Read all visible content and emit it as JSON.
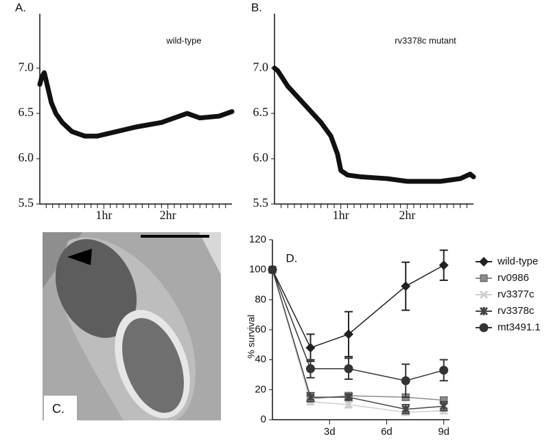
{
  "chart_data": [
    {
      "type": "line",
      "label": "A.",
      "annotation": "wild-type",
      "color": "#111111",
      "x": [
        0,
        0.03,
        0.07,
        0.12,
        0.18,
        0.25,
        0.35,
        0.5,
        0.7,
        0.9,
        1.2,
        1.5,
        1.9,
        2.1,
        2.3,
        2.5,
        2.8,
        3.0
      ],
      "values": [
        6.82,
        6.9,
        6.95,
        6.8,
        6.62,
        6.5,
        6.4,
        6.3,
        6.25,
        6.25,
        6.3,
        6.35,
        6.4,
        6.45,
        6.5,
        6.45,
        6.47,
        6.52
      ],
      "xlim": [
        0,
        3
      ],
      "ylim": [
        5.5,
        7.6
      ],
      "xticks": [
        {
          "value": 1,
          "label": "1hr"
        },
        {
          "value": 2,
          "label": "2hr"
        }
      ],
      "xminorticks": [
        0.1,
        0.2,
        0.3,
        0.4,
        0.5,
        0.6,
        0.7,
        0.8,
        0.9,
        1.1,
        1.2,
        1.3,
        1.4,
        1.5,
        1.6,
        1.7,
        1.8,
        1.9,
        2.1,
        2.2,
        2.3,
        2.4,
        2.5,
        2.6,
        2.7,
        2.8,
        2.9
      ],
      "yticks": [
        {
          "value": 5.5,
          "label": "5.5"
        },
        {
          "value": 6,
          "label": "6.0"
        },
        6.5,
        {
          "value": 7,
          "label": "7.0"
        }
      ]
    },
    {
      "type": "line",
      "label": "B.",
      "annotation": "rv3378c mutant",
      "color": "#111111",
      "x": [
        0,
        0.05,
        0.2,
        0.45,
        0.7,
        0.85,
        0.95,
        1.0,
        1.1,
        1.3,
        1.7,
        2.0,
        2.5,
        2.8,
        2.95,
        3.0
      ],
      "values": [
        7.0,
        6.97,
        6.8,
        6.6,
        6.4,
        6.25,
        6.05,
        5.87,
        5.82,
        5.8,
        5.78,
        5.75,
        5.75,
        5.78,
        5.83,
        5.8
      ],
      "xlim": [
        0,
        3
      ],
      "ylim": [
        5.5,
        7.6
      ],
      "xticks": [
        {
          "value": 1,
          "label": "1hr"
        },
        {
          "value": 2,
          "label": "2hr"
        }
      ],
      "xminorticks": [
        0.1,
        0.2,
        0.3,
        0.4,
        0.5,
        0.6,
        0.7,
        0.8,
        0.9,
        1.1,
        1.2,
        1.3,
        1.4,
        1.5,
        1.6,
        1.7,
        1.8,
        1.9,
        2.1,
        2.2,
        2.3,
        2.4,
        2.5,
        2.6,
        2.7,
        2.8,
        2.9
      ],
      "yticks": [
        {
          "value": 5.5,
          "label": "5.5"
        },
        {
          "value": 6,
          "label": "6.0"
        },
        6.5,
        {
          "value": 7,
          "label": "7.0"
        }
      ]
    },
    {
      "type": "line",
      "label": "D.",
      "y_label": "% survival",
      "legend": "right",
      "x": [
        0,
        2,
        4,
        7,
        9
      ],
      "xlim": [
        0,
        9.3
      ],
      "ylim": [
        0,
        120
      ],
      "xticks": [
        {
          "value": 3,
          "label": "3d"
        },
        {
          "value": 6,
          "label": "6d"
        },
        {
          "value": 9,
          "label": "9d"
        }
      ],
      "yticks": [
        0,
        20,
        40,
        60,
        80,
        100,
        120
      ],
      "series": [
        {
          "name": "wild-type",
          "color": "#222222",
          "marker": "diamond",
          "values": [
            100,
            48,
            57,
            89,
            103
          ],
          "errors": [
            0,
            9,
            15,
            16,
            10
          ]
        },
        {
          "name": "rv0986",
          "color": "#8c8c8c",
          "marker": "square",
          "values": [
            100,
            14,
            16,
            15,
            13
          ],
          "errors": [
            0,
            2,
            2,
            2,
            2
          ]
        },
        {
          "name": "rv3377c",
          "color": "#cfcfcf",
          "marker": "x",
          "values": [
            100,
            12,
            10,
            5,
            6
          ],
          "errors": [
            0,
            2,
            2,
            2,
            2
          ]
        },
        {
          "name": "rv3378c",
          "color": "#444444",
          "marker": "asterisk",
          "values": [
            100,
            15,
            15,
            7,
            9
          ],
          "errors": [
            0,
            3,
            2,
            3,
            3
          ]
        },
        {
          "name": "mt3491.1",
          "color": "#333333",
          "marker": "circle",
          "values": [
            100,
            34,
            34,
            26,
            33
          ],
          "errors": [
            0,
            6,
            7,
            11,
            7
          ]
        }
      ]
    }
  ],
  "panel_c": {
    "label": "C."
  }
}
